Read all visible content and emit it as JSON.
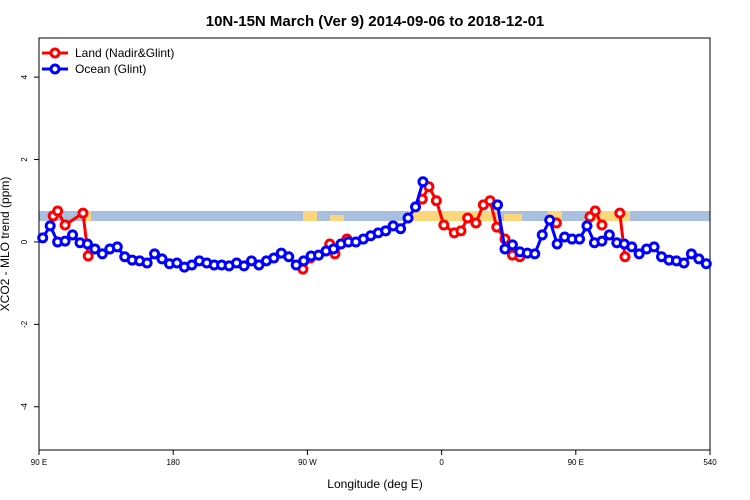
{
  "chart_data": {
    "type": "line",
    "title": "10N-15N March (Ver 9)   2014-09-06 to 2018-12-01",
    "xlabel": "Longitude (deg E)",
    "ylabel": "XCO2 - MLO trend (ppm)",
    "xlim": [
      90,
      540
    ],
    "ylim": [
      -5.05,
      4.95
    ],
    "xticks": [
      {
        "value": 90,
        "label": "90 E"
      },
      180,
      {
        "value": 270,
        "label": "90 W"
      },
      {
        "value": 360,
        "label": "0"
      },
      {
        "value": 450,
        "label": "90 E"
      },
      540
    ],
    "yticks": [
      -4,
      -2,
      0,
      2,
      4
    ],
    "legend": "top-left",
    "series": [
      {
        "name": "Land (Nadir&Glint)",
        "color": "#ff0000",
        "x": [
          99.5,
          102.5,
          107.5,
          119.5,
          123,
          125,
          267,
          272,
          278,
          285,
          288.5,
          296.5,
          300,
          347,
          351.5,
          356.5,
          361.5,
          368.5,
          373,
          377.5,
          383,
          388,
          392.5,
          397,
          402.5,
          407.5,
          412.5,
          420,
          437,
          450,
          459.5,
          463,
          467.5,
          473,
          479.5,
          483
        ],
        "values": [
          0.63,
          0.75,
          0.41,
          0.7,
          -0.34,
          null,
          -0.66,
          -0.39,
          null,
          -0.05,
          -0.29,
          0.07,
          null,
          1.04,
          1.34,
          1.0,
          0.41,
          0.22,
          0.27,
          0.58,
          0.46,
          0.9,
          1.0,
          0.36,
          0.07,
          -0.32,
          -0.36,
          null,
          0.46,
          null,
          0.61,
          0.75,
          0.41,
          null,
          0.7,
          -0.36
        ]
      },
      {
        "name": "Ocean (Glint)",
        "color": "#0000ff",
        "x": [
          92.5,
          97.5,
          102.5,
          107.5,
          112.5,
          117.5,
          122.5,
          127.5,
          132.5,
          137.5,
          142.5,
          147.5,
          152.5,
          157.5,
          162.5,
          167.5,
          172.5,
          177.5,
          182.5,
          187.5,
          192.5,
          197.5,
          202.5,
          207.5,
          212.5,
          217.5,
          222.5,
          227.5,
          232.5,
          237.5,
          242.5,
          247.5,
          252.5,
          257.5,
          262.5,
          267.5,
          272.5,
          277.5,
          282.5,
          287.5,
          292.5,
          297.5,
          302.5,
          307.5,
          312.5,
          317.5,
          322.5,
          327.5,
          332.5,
          337.5,
          342.5,
          347.5,
          352.5,
          397.5,
          402.5,
          407.5,
          412.5,
          417.5,
          422.5,
          427.5,
          432.5,
          437.5,
          442.5,
          447.5,
          452.5,
          457.5,
          462.5,
          467.5,
          472.5,
          477.5,
          482.5,
          487.5,
          492.5,
          497.5,
          502.5,
          507.5,
          512.5,
          517.5,
          522.5,
          527.5,
          532.5,
          537.5
        ],
        "values": [
          0.1,
          0.39,
          0.0,
          0.02,
          0.17,
          -0.02,
          -0.05,
          -0.17,
          -0.29,
          -0.17,
          -0.12,
          -0.36,
          -0.44,
          -0.46,
          -0.51,
          -0.29,
          -0.41,
          -0.53,
          -0.51,
          -0.61,
          -0.56,
          -0.46,
          -0.51,
          -0.56,
          -0.56,
          -0.58,
          -0.51,
          -0.58,
          -0.46,
          -0.56,
          -0.46,
          -0.39,
          -0.27,
          -0.36,
          -0.56,
          -0.46,
          -0.34,
          -0.32,
          -0.22,
          -0.17,
          -0.05,
          0.0,
          0.0,
          0.07,
          0.15,
          0.22,
          0.27,
          0.39,
          0.32,
          0.58,
          0.85,
          1.46,
          null,
          0.9,
          -0.17,
          -0.07,
          -0.24,
          -0.27,
          -0.29,
          0.17,
          0.53,
          -0.05,
          0.12,
          0.07,
          0.07,
          0.39,
          -0.02,
          0.02,
          0.17,
          -0.02,
          -0.05,
          -0.12,
          -0.29,
          -0.17,
          -0.12,
          -0.36,
          -0.44,
          -0.46,
          -0.51,
          -0.29,
          -0.41,
          -0.53
        ]
      }
    ]
  }
}
